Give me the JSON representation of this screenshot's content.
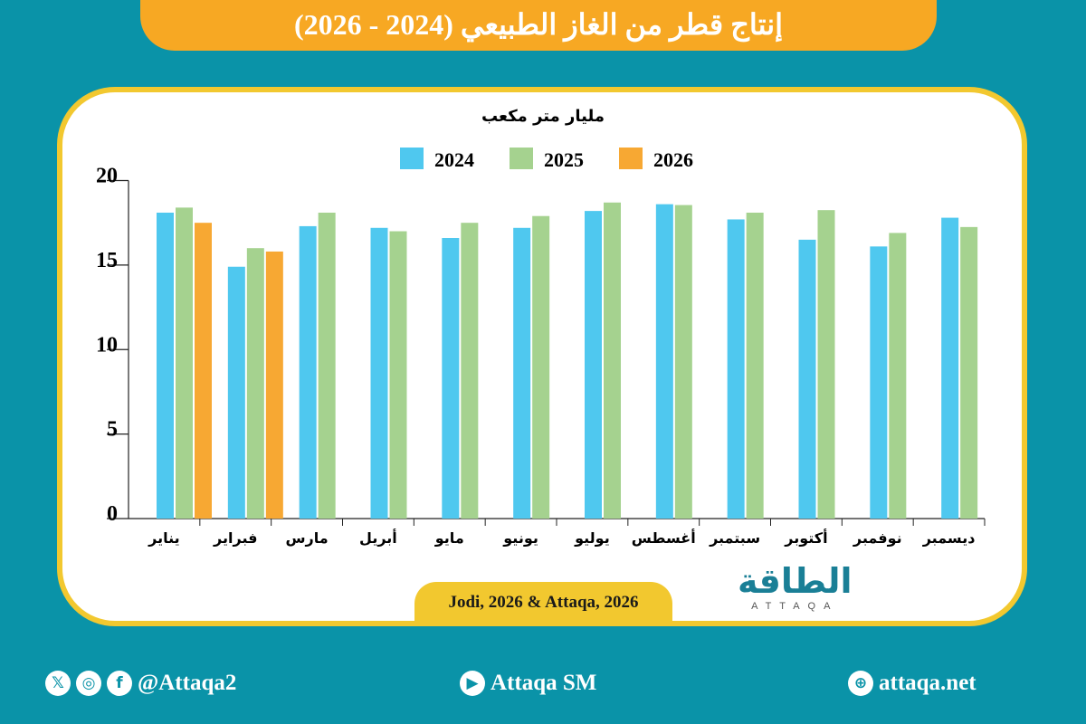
{
  "title": "إنتاج قطر من الغاز الطبيعي (2024 - 2026)",
  "source": "Jodi, 2026 & Attaqa, 2026",
  "logo": {
    "arabic": "الطاقة",
    "latin": "ATTAQA"
  },
  "footer": {
    "twitter_handle": "@Attaqa2",
    "youtube": "Attaqa SM",
    "website": "attaqa.net"
  },
  "colors": {
    "background": "#0a93a8",
    "banner": "#f7a823",
    "border": "#f2c82f",
    "s2024": "#4fc8ef",
    "s2025": "#a5d28f",
    "s2026": "#f7a833"
  },
  "chart_data": {
    "type": "bar",
    "ylabel": "مليار متر مكعب",
    "ylim": [
      0,
      20
    ],
    "yticks": [
      0,
      5,
      10,
      15,
      20
    ],
    "legend_position": "top",
    "grid": false,
    "categories": [
      "يناير",
      "فبراير",
      "مارس",
      "أبريل",
      "مايو",
      "يونيو",
      "يوليو",
      "أغسطس",
      "سبتمبر",
      "أكتوبر",
      "نوفمبر",
      "ديسمبر"
    ],
    "series": [
      {
        "name": "2024",
        "color": "#4fc8ef",
        "values": [
          18.1,
          14.9,
          17.3,
          17.2,
          16.6,
          17.2,
          18.2,
          18.6,
          17.7,
          16.5,
          16.1,
          17.8
        ]
      },
      {
        "name": "2025",
        "color": "#a5d28f",
        "values": [
          18.4,
          16.0,
          18.1,
          17.0,
          17.5,
          17.9,
          18.7,
          18.55,
          18.1,
          18.25,
          16.9,
          17.25
        ]
      },
      {
        "name": "2026",
        "color": "#f7a833",
        "values": [
          17.5,
          15.8,
          null,
          null,
          null,
          null,
          null,
          null,
          null,
          null,
          null,
          null
        ]
      }
    ]
  }
}
